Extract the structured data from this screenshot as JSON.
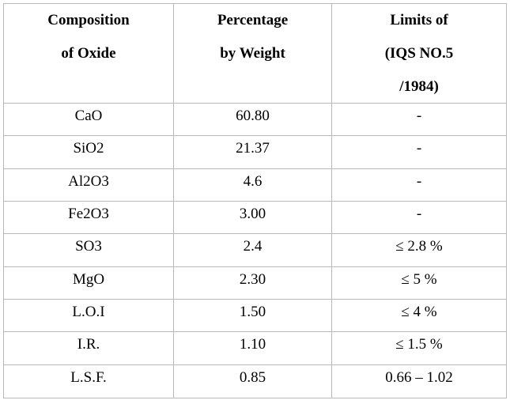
{
  "colors": {
    "background": "#ffffff",
    "border": "#b9b9b9",
    "text": "#000000"
  },
  "table": {
    "header": [
      {
        "lines": [
          "Composition",
          "of Oxide",
          ""
        ]
      },
      {
        "lines": [
          "Percentage",
          "by Weight",
          ""
        ]
      },
      {
        "lines": [
          "Limits of",
          "(IQS NO.5",
          "/1984)"
        ]
      }
    ],
    "rows": [
      {
        "composition": "CaO",
        "percentage": "60.80",
        "limit": "-"
      },
      {
        "composition": "SiO2",
        "percentage": "21.37",
        "limit": "-"
      },
      {
        "composition": "Al2O3",
        "percentage": "4.6",
        "limit": "-"
      },
      {
        "composition": "Fe2O3",
        "percentage": "3.00",
        "limit": "-"
      },
      {
        "composition": "SO3",
        "percentage": "2.4",
        "limit": "≤ 2.8 %"
      },
      {
        "composition": "MgO",
        "percentage": "2.30",
        "limit": "≤ 5 %"
      },
      {
        "composition": "L.O.I",
        "percentage": "1.50",
        "limit": "≤ 4 %"
      },
      {
        "composition": "I.R.",
        "percentage": "1.10",
        "limit": "≤ 1.5 %"
      },
      {
        "composition": "L.S.F.",
        "percentage": "0.85",
        "limit": "0.66 – 1.02"
      }
    ]
  },
  "chart_data": {
    "type": "table",
    "columns": [
      "Composition of Oxide",
      "Percentage by Weight",
      "Limits of (IQS NO.5 /1984)"
    ],
    "rows": [
      [
        "CaO",
        "60.80",
        "-"
      ],
      [
        "SiO2",
        "21.37",
        "-"
      ],
      [
        "Al2O3",
        "4.6",
        "-"
      ],
      [
        "Fe2O3",
        "3.00",
        "-"
      ],
      [
        "SO3",
        "2.4",
        "≤ 2.8 %"
      ],
      [
        "MgO",
        "2.30",
        "≤ 5 %"
      ],
      [
        "L.O.I",
        "1.50",
        "≤ 4 %"
      ],
      [
        "I.R.",
        "1.10",
        "≤ 1.5 %"
      ],
      [
        "L.S.F.",
        "0.85",
        "0.66 – 1.02"
      ]
    ]
  }
}
